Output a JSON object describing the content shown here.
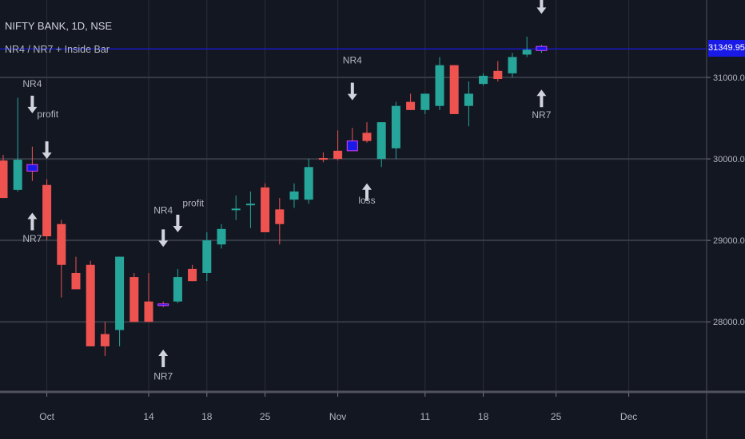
{
  "header": {
    "title": "NIFTY BANK, 1D, NSE",
    "indicator": "NR4 / NR7 + Inside Bar"
  },
  "colors": {
    "background": "#131722",
    "up": "#26a69a",
    "down": "#ef5350",
    "highlight_blue": "#1a1ae6",
    "highlight_pink": "#e040fb",
    "grid": "#363a45",
    "arrow": "#d1d4dc"
  },
  "chart_data": {
    "type": "candlestick",
    "y_axis": {
      "ticks": [
        28000,
        29000,
        30000,
        31000
      ],
      "tick_labels": [
        "28000.00",
        "29000.00",
        "30000.00",
        "31000.00"
      ],
      "range": [
        27150,
        31950
      ]
    },
    "x_axis": {
      "ticks": [
        {
          "index": 3,
          "label": "Oct"
        },
        {
          "index": 10,
          "label": "14"
        },
        {
          "index": 14,
          "label": "18"
        },
        {
          "index": 18,
          "label": "25"
        },
        {
          "index": 23,
          "label": "Nov"
        },
        {
          "index": 29,
          "label": "11"
        },
        {
          "index": 33,
          "label": "18"
        },
        {
          "index": 38,
          "label": "25"
        },
        {
          "index": 43,
          "label": "Dec"
        }
      ]
    },
    "last_price": 31349.95,
    "last_price_label": "31349.95",
    "candles": [
      {
        "o": 29980,
        "h": 30050,
        "l": 29520,
        "c": 29520
      },
      {
        "o": 29620,
        "h": 30750,
        "l": 29600,
        "c": 29990
      },
      {
        "o": 29930,
        "h": 30150,
        "l": 29730,
        "c": 29850,
        "mark": "blue"
      },
      {
        "o": 29680,
        "h": 29750,
        "l": 29000,
        "c": 29050
      },
      {
        "o": 29200,
        "h": 29250,
        "l": 28300,
        "c": 28700
      },
      {
        "o": 28600,
        "h": 28800,
        "l": 28400,
        "c": 28400
      },
      {
        "o": 28700,
        "h": 28750,
        "l": 27700,
        "c": 27700
      },
      {
        "o": 27850,
        "h": 28000,
        "l": 27580,
        "c": 27700
      },
      {
        "o": 27900,
        "h": 28800,
        "l": 27700,
        "c": 28800
      },
      {
        "o": 28550,
        "h": 28600,
        "l": 28000,
        "c": 28000
      },
      {
        "o": 28250,
        "h": 28600,
        "l": 28000,
        "c": 28000
      },
      {
        "o": 28220,
        "h": 28250,
        "l": 28180,
        "c": 28200,
        "mark": "pink"
      },
      {
        "o": 28250,
        "h": 28650,
        "l": 28230,
        "c": 28550
      },
      {
        "o": 28650,
        "h": 28700,
        "l": 28500,
        "c": 28500
      },
      {
        "o": 28600,
        "h": 29100,
        "l": 28500,
        "c": 29000
      },
      {
        "o": 28950,
        "h": 29200,
        "l": 28900,
        "c": 29140
      },
      {
        "o": 29390,
        "h": 29550,
        "l": 29250,
        "c": 29390
      },
      {
        "o": 29450,
        "h": 29600,
        "l": 29150,
        "c": 29450
      },
      {
        "o": 29650,
        "h": 29700,
        "l": 29100,
        "c": 29100
      },
      {
        "o": 29380,
        "h": 29520,
        "l": 28950,
        "c": 29200
      },
      {
        "o": 29500,
        "h": 29700,
        "l": 29400,
        "c": 29600
      },
      {
        "o": 29500,
        "h": 30000,
        "l": 29450,
        "c": 29900
      },
      {
        "o": 30010,
        "h": 30080,
        "l": 29960,
        "c": 29990
      },
      {
        "o": 30100,
        "h": 30350,
        "l": 29980,
        "c": 30000
      },
      {
        "o": 30220,
        "h": 30380,
        "l": 30100,
        "c": 30100,
        "mark": "blue"
      },
      {
        "o": 30320,
        "h": 30450,
        "l": 30200,
        "c": 30220
      },
      {
        "o": 30000,
        "h": 30450,
        "l": 29900,
        "c": 30450
      },
      {
        "o": 30130,
        "h": 30700,
        "l": 30000,
        "c": 30650
      },
      {
        "o": 30700,
        "h": 30800,
        "l": 30600,
        "c": 30600
      },
      {
        "o": 30600,
        "h": 30800,
        "l": 30550,
        "c": 30800
      },
      {
        "o": 30650,
        "h": 31250,
        "l": 30600,
        "c": 31150
      },
      {
        "o": 31150,
        "h": 31150,
        "l": 30550,
        "c": 30550
      },
      {
        "o": 30650,
        "h": 30950,
        "l": 30400,
        "c": 30800
      },
      {
        "o": 30920,
        "h": 31050,
        "l": 30900,
        "c": 31020
      },
      {
        "o": 31080,
        "h": 31200,
        "l": 30950,
        "c": 30980
      },
      {
        "o": 31050,
        "h": 31300,
        "l": 31000,
        "c": 31250
      },
      {
        "o": 31280,
        "h": 31500,
        "l": 31250,
        "c": 31340
      },
      {
        "o": 31330,
        "h": 31400,
        "l": 31300,
        "c": 31380,
        "mark": "pink"
      }
    ],
    "annotations": [
      {
        "index": 2,
        "text": "NR4",
        "kind": "label_above",
        "price": 30880
      },
      {
        "index": 2,
        "text": "",
        "kind": "arrow_down",
        "price": 30560
      },
      {
        "index": 3,
        "text": "",
        "kind": "arrow_down",
        "price": 30000
      },
      {
        "index": 2,
        "text": "profit",
        "kind": "label_right",
        "price": 30510
      },
      {
        "index": 2,
        "text": "",
        "kind": "arrow_up",
        "price": 29340
      },
      {
        "index": 2,
        "text": "NR7",
        "kind": "label_below",
        "price": 28980
      },
      {
        "index": 11,
        "text": "NR4",
        "kind": "label_above",
        "price": 29330
      },
      {
        "index": 11,
        "text": "",
        "kind": "arrow_down",
        "price": 28920
      },
      {
        "index": 12,
        "text": "",
        "kind": "arrow_down",
        "price": 29100
      },
      {
        "index": 12,
        "text": "profit",
        "kind": "label_right",
        "price": 29420
      },
      {
        "index": 11,
        "text": "",
        "kind": "arrow_up",
        "price": 27660
      },
      {
        "index": 11,
        "text": "NR7",
        "kind": "label_below",
        "price": 27290
      },
      {
        "index": 24,
        "text": "NR4",
        "kind": "label_above",
        "price": 31170
      },
      {
        "index": 24,
        "text": "",
        "kind": "arrow_down",
        "price": 30720
      },
      {
        "index": 25,
        "text": "",
        "kind": "arrow_up",
        "price": 29700
      },
      {
        "index": 25,
        "text": "loss",
        "kind": "label_below",
        "price": 29450
      },
      {
        "index": 37,
        "text": "",
        "kind": "arrow_down",
        "price": 31780
      },
      {
        "index": 37,
        "text": "",
        "kind": "arrow_up",
        "price": 30850
      },
      {
        "index": 37,
        "text": "NR7",
        "kind": "label_below",
        "price": 30500
      }
    ]
  }
}
